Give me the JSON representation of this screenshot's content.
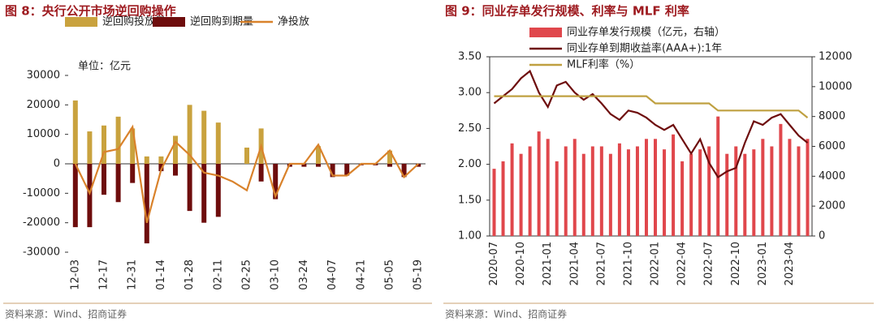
{
  "chart_data": [
    {
      "type": "combo",
      "title": "图 8：央行公开市场逆回购操作",
      "annotation": "单位：亿元",
      "source": "资料来源：Wind、招商证券",
      "categories": [
        "12-03",
        null,
        "12-17",
        null,
        "12-31",
        null,
        "01-14",
        null,
        "01-28",
        null,
        "02-11",
        null,
        "02-25",
        null,
        "03-10",
        null,
        "03-24",
        null,
        "04-07",
        null,
        "04-21",
        null,
        "05-05",
        null,
        "05-19"
      ],
      "series": [
        {
          "name": "逆回购投放量",
          "type": "bar",
          "color": "#C9A23E",
          "values": [
            21500,
            11000,
            13000,
            16000,
            12000,
            2500,
            2500,
            9500,
            20000,
            18000,
            14000,
            0,
            5500,
            12000,
            0,
            0,
            0,
            6000,
            0,
            0,
            0,
            0,
            4500,
            0,
            0
          ]
        },
        {
          "name": "逆回购到期量",
          "type": "bar",
          "color": "#6E0D0D",
          "values": [
            -21500,
            -21500,
            -10500,
            -13000,
            -6500,
            -27000,
            -2500,
            -4000,
            -16000,
            -20000,
            -18000,
            0,
            0,
            -6000,
            -12000,
            -1000,
            -1000,
            -1000,
            -4500,
            -4000,
            -500,
            -500,
            -1000,
            -4500,
            -1000
          ]
        },
        {
          "name": "净投放",
          "type": "line",
          "color": "#D9822B",
          "values": [
            0,
            -10000,
            4000,
            5000,
            12500,
            -20000,
            -2000,
            7500,
            3000,
            -3000,
            -4000,
            -6000,
            -9000,
            6000,
            -11000,
            0,
            0,
            6500,
            -4000,
            -4000,
            0,
            0,
            4500,
            -4500,
            0
          ]
        }
      ],
      "ylim": [
        -30000,
        30000
      ],
      "yticks": [
        -30000,
        -20000,
        -10000,
        0,
        10000,
        20000,
        30000
      ]
    },
    {
      "type": "combo",
      "title": "图 9：同业存单发行规模、利率与 MLF 利率",
      "source": "资料来源：Wind、招商证券",
      "categories": [
        "2020-07",
        null,
        null,
        "2020-10",
        null,
        null,
        "2021-01",
        null,
        null,
        "2021-04",
        null,
        null,
        "2021-07",
        null,
        null,
        "2021-10",
        null,
        null,
        "2022-01",
        null,
        null,
        "2022-04",
        null,
        null,
        "2022-07",
        null,
        null,
        "2022-10",
        null,
        null,
        "2023-01",
        null,
        null,
        "2023-04",
        null,
        null
      ],
      "series": [
        {
          "name": "同业存单发行规模（亿元，右轴）",
          "type": "bar",
          "axis": "y2",
          "color": "#E0474C",
          "values": [
            4500,
            5000,
            6200,
            5500,
            6000,
            7000,
            6500,
            5000,
            6000,
            6500,
            5500,
            6000,
            6000,
            5500,
            6200,
            5800,
            6000,
            6500,
            6500,
            5800,
            6800,
            5000,
            5500,
            5800,
            6000,
            8000,
            5500,
            6000,
            5500,
            5800,
            6500,
            6000,
            7500,
            6500,
            6000,
            6500
          ]
        },
        {
          "name": "同业存单到期收益率(AAA+):1年",
          "type": "line",
          "color": "#6E0D0D",
          "values": [
            2.85,
            2.95,
            3.05,
            3.2,
            3.3,
            3.0,
            2.8,
            3.1,
            3.15,
            3.0,
            2.9,
            2.98,
            2.85,
            2.7,
            2.62,
            2.75,
            2.72,
            2.65,
            2.55,
            2.48,
            2.55,
            2.35,
            2.15,
            2.35,
            2.02,
            1.82,
            1.9,
            1.95,
            2.3,
            2.6,
            2.55,
            2.65,
            2.7,
            2.55,
            2.4,
            2.3
          ]
        },
        {
          "name": "MLF利率（%）",
          "type": "line",
          "color": "#BFA040",
          "values": [
            2.95,
            2.95,
            2.95,
            2.95,
            2.95,
            2.95,
            2.95,
            2.95,
            2.95,
            2.95,
            2.95,
            2.95,
            2.95,
            2.95,
            2.95,
            2.95,
            2.95,
            2.95,
            2.85,
            2.85,
            2.85,
            2.85,
            2.85,
            2.85,
            2.85,
            2.75,
            2.75,
            2.75,
            2.75,
            2.75,
            2.75,
            2.75,
            2.75,
            2.75,
            2.75,
            2.65
          ]
        }
      ],
      "ylim": [
        1,
        3.5
      ],
      "yticks": [
        {
          "value": 1,
          "label": "1.00"
        },
        {
          "value": 1.5,
          "label": "1.50"
        },
        {
          "value": 2,
          "label": "2.00"
        },
        {
          "value": 2.5,
          "label": "2.50"
        },
        {
          "value": 3,
          "label": "3.00"
        },
        {
          "value": 3.5,
          "label": "3.50"
        }
      ],
      "y2lim": [
        0,
        12000
      ],
      "y2ticks": [
        0,
        2000,
        4000,
        6000,
        8000,
        10000,
        12000
      ]
    }
  ]
}
